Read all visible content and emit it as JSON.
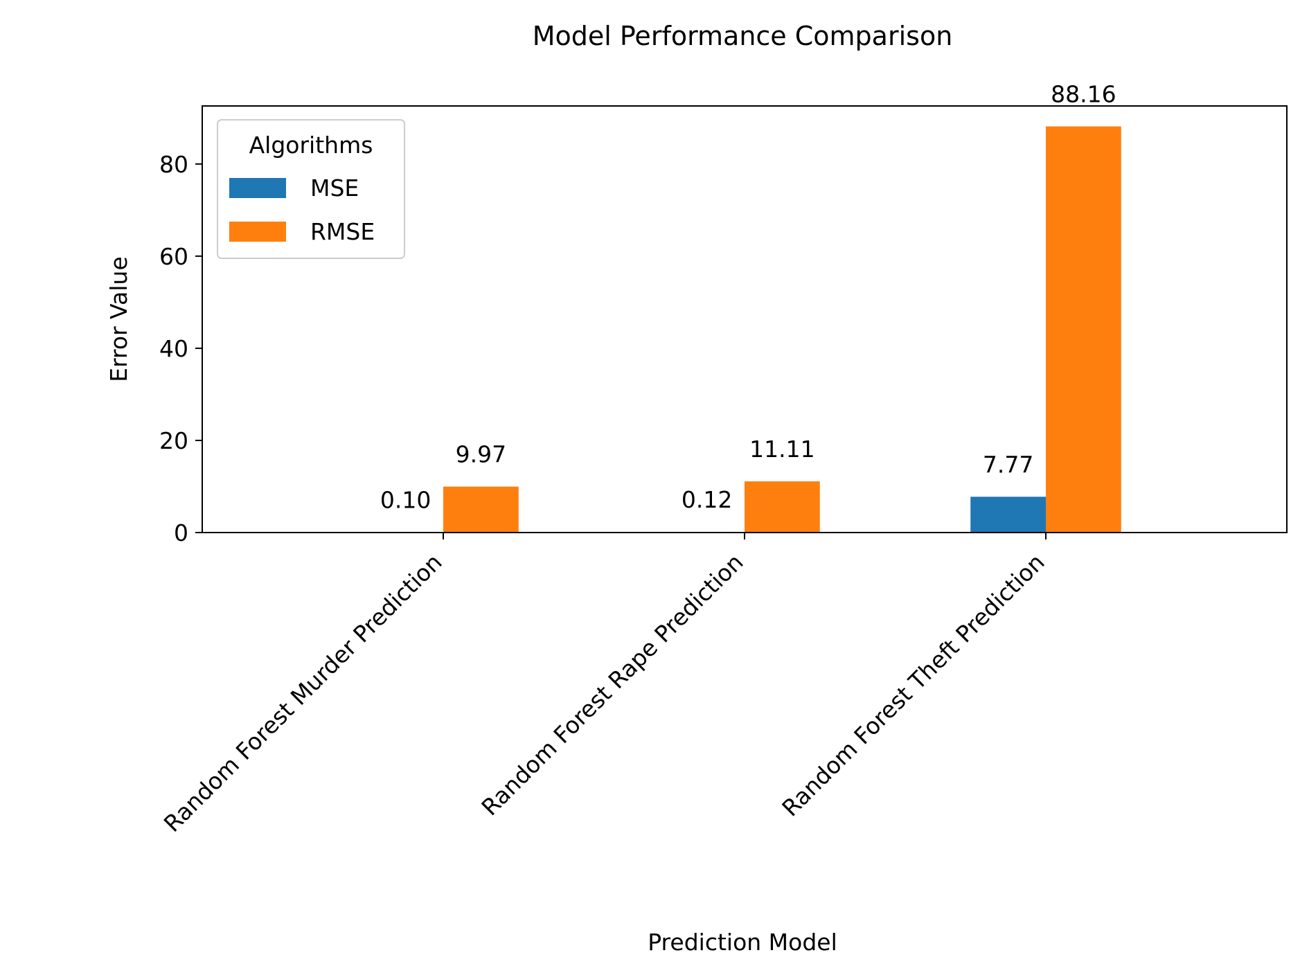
{
  "chart_data": {
    "type": "bar",
    "title": "Model Performance Comparison",
    "xlabel": "Prediction Model",
    "ylabel": "Error Value",
    "categories": [
      "Random Forest Murder Prediction",
      "Random Forest Rape Prediction",
      "Random Forest Theft Prediction"
    ],
    "series": [
      {
        "name": "MSE",
        "values": [
          0.1,
          0.12,
          7.77
        ],
        "color": "#1f77b4"
      },
      {
        "name": "RMSE",
        "values": [
          9.97,
          11.11,
          88.16
        ],
        "color": "#ff7f0e"
      }
    ],
    "data_labels": [
      [
        "0.10",
        "0.12",
        "7.77"
      ],
      [
        "9.97",
        "11.11",
        "88.16"
      ]
    ],
    "ylim": [
      0,
      92.6
    ],
    "yticks": [
      0,
      20,
      40,
      60,
      80
    ],
    "ytick_labels": [
      "0",
      "20",
      "40",
      "60",
      "80"
    ],
    "grid": false,
    "legend": {
      "title": "Algorithms",
      "placement": "top-left"
    }
  }
}
